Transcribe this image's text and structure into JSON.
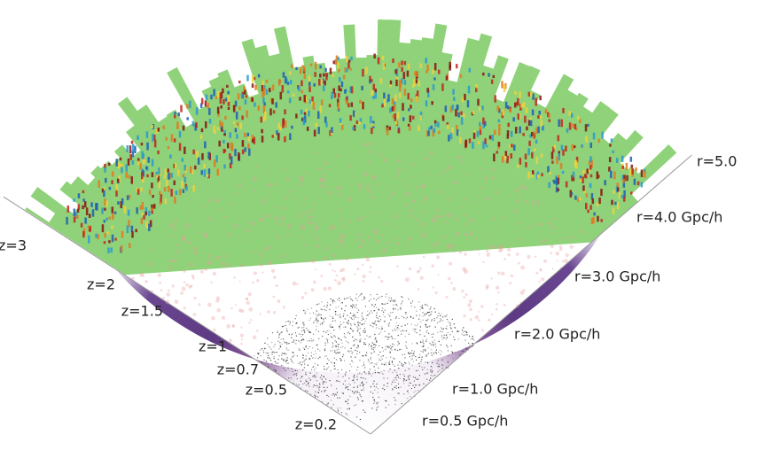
{
  "z_labels": [
    "z=0.2",
    "z=0.5",
    "z=0.7",
    "z=1",
    "z=1.5",
    "z=2",
    "z=3"
  ],
  "r_labels": [
    "r=0.5 Gpc/h",
    "r=1.0 Gpc/h",
    "r=2.0 Gpc/h",
    "r=3.0 Gpc/h",
    "r=4.0 Gpc/h",
    "r=5.0"
  ]
}
